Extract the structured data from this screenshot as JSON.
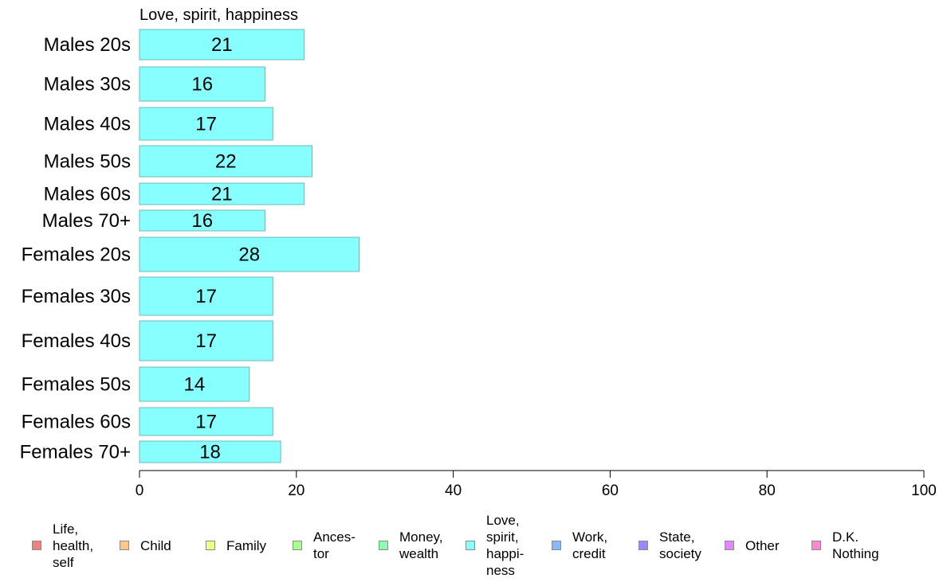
{
  "chart_data": {
    "type": "bar",
    "orientation": "horizontal",
    "panel_title": "Love, spirit, happiness",
    "categories": [
      "Males 20s",
      "Males 30s",
      "Males 40s",
      "Males 50s",
      "Males 60s",
      "Males 70+",
      "Females 20s",
      "Females 30s",
      "Females 40s",
      "Females 50s",
      "Females 60s",
      "Females 70+"
    ],
    "values": [
      21,
      16,
      17,
      22,
      21,
      16,
      28,
      17,
      17,
      14,
      17,
      18
    ],
    "value_labels": [
      "21",
      "16",
      "17",
      "22",
      "21",
      "16",
      "28",
      "17",
      "17",
      "14",
      "17",
      "18"
    ],
    "bar_color": "#88ffff",
    "xlim": [
      0,
      100
    ],
    "xticks": [
      0,
      20,
      40,
      60,
      80,
      100
    ],
    "xtick_labels": [
      "0",
      "20",
      "40",
      "60",
      "80",
      "100"
    ],
    "grid": false,
    "legend_position": "bottom",
    "legend": [
      {
        "label": "Life,\nhealth,\nself",
        "color": "#f08080"
      },
      {
        "label": "Child",
        "color": "#ffc88a"
      },
      {
        "label": "Family",
        "color": "#eeff88"
      },
      {
        "label": "Ances-\ntor",
        "color": "#a6ff88"
      },
      {
        "label": "Money,\nwealth",
        "color": "#88ffb0"
      },
      {
        "label": "Love,\nspirit,\nhappi-\nness",
        "color": "#88ffff"
      },
      {
        "label": "Work,\ncredit",
        "color": "#88b8ff"
      },
      {
        "label": "State,\nsociety",
        "color": "#9a88ff"
      },
      {
        "label": "Other",
        "color": "#e288ff"
      },
      {
        "label": "D.K.\nNothing",
        "color": "#ff88cc"
      }
    ]
  }
}
